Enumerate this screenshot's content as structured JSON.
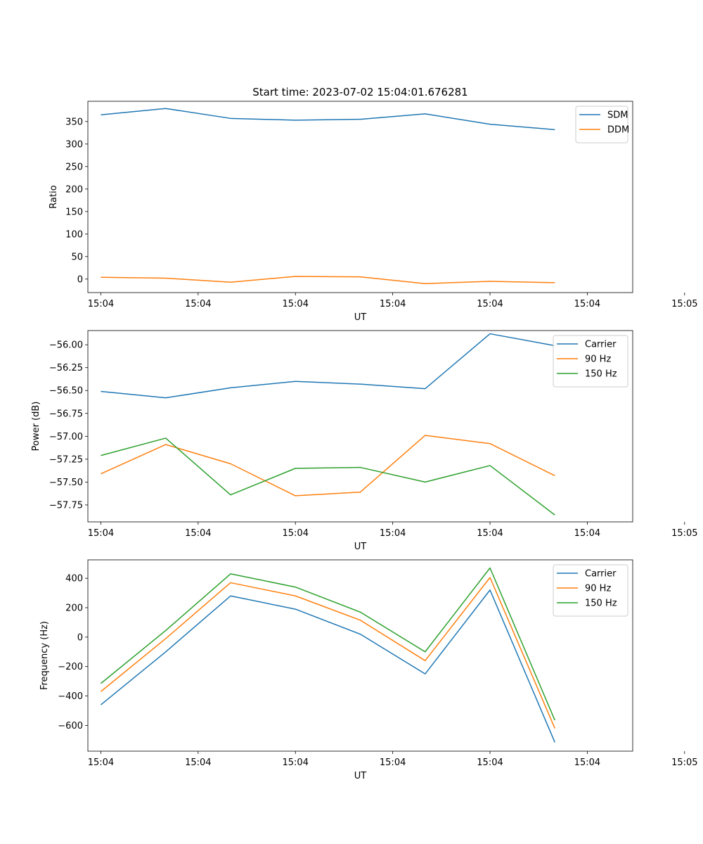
{
  "chart_data": [
    {
      "type": "line",
      "title": "Start time: 2023-07-02 15:04:01.676281",
      "xlabel": "UT",
      "ylabel": "Ratio",
      "x": [
        1,
        2,
        3,
        4,
        5,
        6,
        7,
        8
      ],
      "xlim": [
        0.8,
        9.2
      ],
      "xticks": [
        1,
        2.5,
        4,
        5.5,
        7,
        8.5,
        10
      ],
      "xtick_labels": [
        "15:04",
        "15:04",
        "15:04",
        "15:04",
        "15:04",
        "15:04",
        "15:05"
      ],
      "ylim": [
        -30,
        395
      ],
      "yticks": [
        0,
        50,
        100,
        150,
        200,
        250,
        300,
        350
      ],
      "ytick_labels": [
        "0",
        "50",
        "100",
        "150",
        "200",
        "250",
        "300",
        "350"
      ],
      "legend_position": "top-right",
      "series": [
        {
          "name": "SDM",
          "color": "#1f77b4",
          "values": [
            365,
            379,
            357,
            353,
            355,
            367,
            344,
            332
          ]
        },
        {
          "name": "DDM",
          "color": "#ff7f0e",
          "values": [
            4,
            2,
            -7,
            6,
            5,
            -10,
            -5,
            -8
          ]
        }
      ]
    },
    {
      "type": "line",
      "title": "",
      "xlabel": "UT",
      "ylabel": "Power (dB)",
      "x": [
        1,
        2,
        3,
        4,
        5,
        6,
        7,
        8
      ],
      "xlim": [
        0.8,
        9.2
      ],
      "xticks": [
        1,
        2.5,
        4,
        5.5,
        7,
        8.5,
        10
      ],
      "xtick_labels": [
        "15:04",
        "15:04",
        "15:04",
        "15:04",
        "15:04",
        "15:04",
        "15:05"
      ],
      "ylim": [
        -57.935,
        -55.845
      ],
      "yticks": [
        -57.75,
        -57.5,
        -57.25,
        -57.0,
        -56.75,
        -56.5,
        -56.25,
        -56.0
      ],
      "ytick_labels": [
        "−57.75",
        "−57.50",
        "−57.25",
        "−57.00",
        "−56.75",
        "−56.50",
        "−56.25",
        "−56.00"
      ],
      "legend_position": "top-right",
      "series": [
        {
          "name": "Carrier",
          "color": "#1f77b4",
          "values": [
            -56.51,
            -56.58,
            -56.47,
            -56.4,
            -56.43,
            -56.48,
            -55.88,
            -56.01
          ]
        },
        {
          "name": "90 Hz",
          "color": "#ff7f0e",
          "values": [
            -57.41,
            -57.09,
            -57.3,
            -57.65,
            -57.61,
            -56.99,
            -57.08,
            -57.43
          ]
        },
        {
          "name": "150 Hz",
          "color": "#2ca02c",
          "values": [
            -57.21,
            -57.02,
            -57.64,
            -57.35,
            -57.34,
            -57.5,
            -57.32,
            -57.86
          ]
        }
      ]
    },
    {
      "type": "line",
      "title": "",
      "xlabel": "UT",
      "ylabel": "Frequency (Hz)",
      "x": [
        1,
        2,
        3,
        4,
        5,
        6,
        7,
        8
      ],
      "xlim": [
        0.8,
        9.2
      ],
      "xticks": [
        1,
        2.5,
        4,
        5.5,
        7,
        8.5,
        10
      ],
      "xtick_labels": [
        "15:04",
        "15:04",
        "15:04",
        "15:04",
        "15:04",
        "15:04",
        "15:05"
      ],
      "ylim": [
        -775,
        525
      ],
      "yticks": [
        -600,
        -400,
        -200,
        0,
        200,
        400
      ],
      "ytick_labels": [
        "−600",
        "−400",
        "−200",
        "0",
        "200",
        "400"
      ],
      "legend_position": "top-right",
      "series": [
        {
          "name": "Carrier",
          "color": "#1f77b4",
          "values": [
            -460,
            -100,
            280,
            190,
            20,
            -250,
            320,
            -715
          ]
        },
        {
          "name": "90 Hz",
          "color": "#ff7f0e",
          "values": [
            -370,
            -10,
            370,
            280,
            115,
            -160,
            405,
            -620
          ]
        },
        {
          "name": "150 Hz",
          "color": "#2ca02c",
          "values": [
            -315,
            45,
            430,
            340,
            170,
            -100,
            470,
            -565
          ]
        }
      ]
    }
  ]
}
